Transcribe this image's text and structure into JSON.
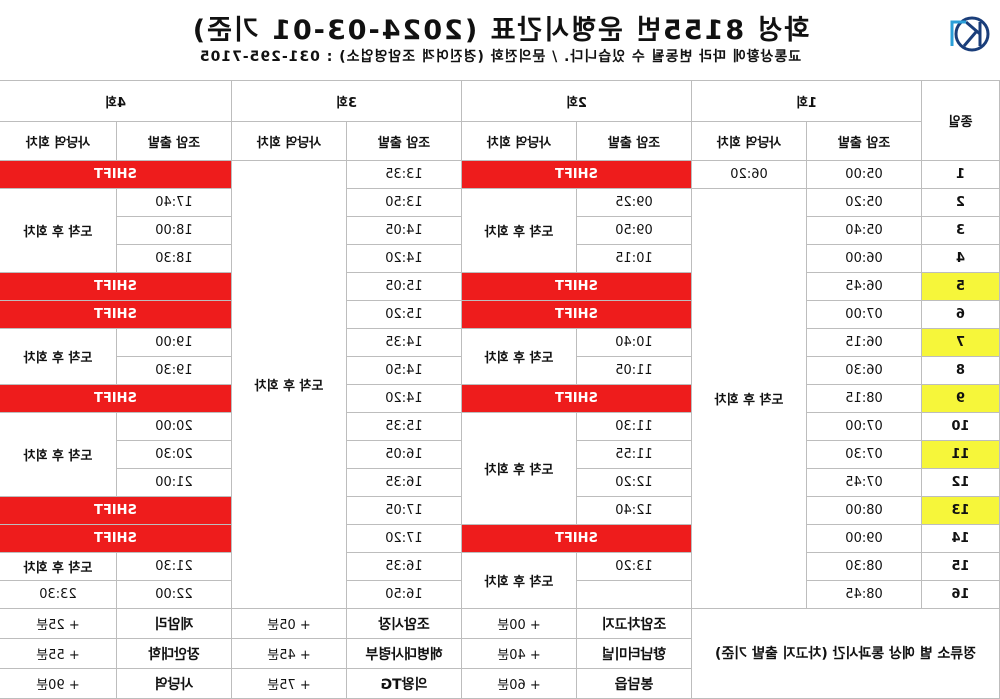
{
  "title": "화성 8155번 운행시간표 (2024-03-01 기준)",
  "subtitle": "교통상황에 따라 변동될 수 있습니다. / 문의전화 (경진여객 조암영업소) : 031-295-7105",
  "logo_text": "KJ",
  "header": {
    "bus_label": "종일",
    "trips": [
      "1회",
      "2회",
      "3회",
      "4회"
    ],
    "depart_label": "조암 출발",
    "return_label": "사당역 회차"
  },
  "shift_label": "SHIFT",
  "return_text": "도착 후 회차",
  "buses": [
    "1",
    "2",
    "3",
    "4",
    "5",
    "6",
    "7",
    "8",
    "9",
    "10",
    "11",
    "12",
    "13",
    "14",
    "15",
    "16"
  ],
  "highlight_buses": [
    "5",
    "7",
    "9",
    "11",
    "13"
  ],
  "trip1": {
    "times": [
      "05:00",
      "05:20",
      "05:40",
      "06:00",
      "06:45",
      "07:00",
      "06:15",
      "06:30",
      "08:15",
      "07:00",
      "07:30",
      "07:45",
      "08:00",
      "09:00",
      "08:30",
      "08:45"
    ],
    "first_return": "06:20"
  },
  "trip2": {
    "times": [
      "09:25",
      "09:50",
      "10:15",
      "10:40",
      "11:05",
      "11:30",
      "11:55",
      "12:20",
      "12:40",
      "13:20"
    ]
  },
  "trip3": {
    "times": [
      "13:35",
      "13:50",
      "14:05",
      "14:20",
      "15:05",
      "15:20",
      "14:35",
      "14:50",
      "14:20",
      "15:35",
      "16:05",
      "16:35",
      "17:05",
      "17:20",
      "16:35",
      "16:50"
    ]
  },
  "trip4": {
    "times": [
      "17:40",
      "18:00",
      "18:30",
      "19:00",
      "19:30",
      "20:00",
      "20:30",
      "21:00",
      "21:30",
      "22:00"
    ],
    "last_return": "23:30"
  },
  "footer": {
    "note": "정류소 별 예상 통과시간 (차고지 출발 기준)",
    "stops": [
      {
        "name": "조암차고지",
        "offset": "+ 00분"
      },
      {
        "name": "향남터미널",
        "offset": "+ 40분"
      },
      {
        "name": "봉담읍",
        "offset": "+ 60분"
      },
      {
        "name": "조암시장",
        "offset": "+ 05분"
      },
      {
        "name": "해병대사령부",
        "offset": "+ 45분"
      },
      {
        "name": "의왕TG",
        "offset": "+ 75분"
      },
      {
        "name": "제암리",
        "offset": "+ 25분"
      },
      {
        "name": "장안대학",
        "offset": "+ 55분"
      },
      {
        "name": "사당역",
        "offset": "+ 90분"
      }
    ]
  }
}
